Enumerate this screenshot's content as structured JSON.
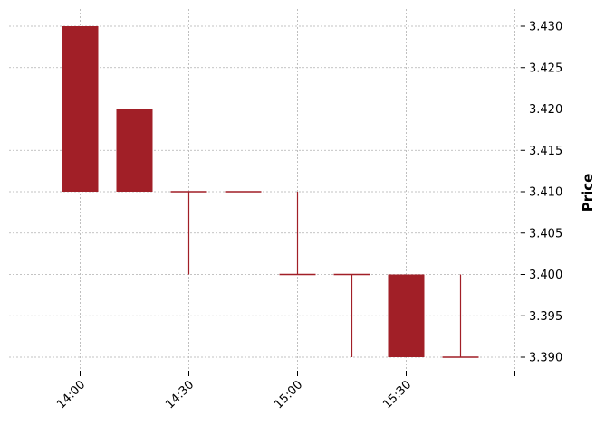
{
  "chart_data": {
    "type": "candlestick",
    "ylabel": "Price",
    "ylim": [
      3.388,
      3.432
    ],
    "y_ticks": [
      "3.390",
      "3.395",
      "3.400",
      "3.405",
      "3.410",
      "3.415",
      "3.420",
      "3.425",
      "3.430"
    ],
    "x_tick_labels": [
      "14:00",
      "14:30",
      "15:00",
      "15:30",
      ""
    ],
    "candles": [
      {
        "time": "14:00",
        "open": 3.43,
        "high": 3.43,
        "low": 3.41,
        "close": 3.41
      },
      {
        "time": "14:15",
        "open": 3.42,
        "high": 3.42,
        "low": 3.41,
        "close": 3.41
      },
      {
        "time": "14:30",
        "open": 3.41,
        "high": 3.41,
        "low": 3.4,
        "close": 3.41
      },
      {
        "time": "14:45",
        "open": 3.41,
        "high": 3.41,
        "low": 3.41,
        "close": 3.41
      },
      {
        "time": "15:00",
        "open": 3.4,
        "high": 3.41,
        "low": 3.4,
        "close": 3.4
      },
      {
        "time": "15:15",
        "open": 3.4,
        "high": 3.4,
        "low": 3.39,
        "close": 3.4
      },
      {
        "time": "15:30",
        "open": 3.4,
        "high": 3.4,
        "low": 3.39,
        "close": 3.39
      },
      {
        "time": "15:45",
        "open": 3.39,
        "high": 3.4,
        "low": 3.39,
        "close": 3.39
      }
    ],
    "colors": {
      "down": "#a11f27"
    },
    "grid": true
  }
}
